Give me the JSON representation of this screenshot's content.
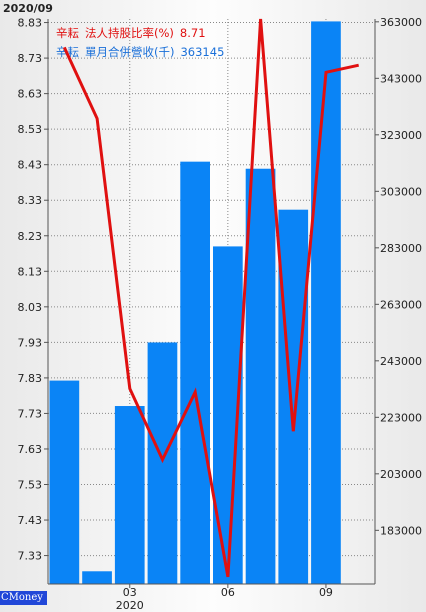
{
  "header": {
    "date": "2020/09"
  },
  "watermark": "CMoney",
  "legend": {
    "line": {
      "stock": "辛耘",
      "label": "法人持股比率(%)",
      "value": "8.71"
    },
    "bar": {
      "stock": "辛耘",
      "label": "單月合併營收(千)",
      "value": "363145"
    }
  },
  "colors": {
    "bar": "#0a84f6",
    "line": "#e01010",
    "grid": "#888888"
  },
  "chart_data": {
    "type": "bar+line",
    "x_tick_labels": [
      {
        "label": "03",
        "index": 2.5
      },
      {
        "label": "06",
        "index": 5.5
      },
      {
        "label": "09",
        "index": 8.5
      }
    ],
    "x_year_label": "2020",
    "left_axis": {
      "ticks": [
        "8.83",
        "8.73",
        "8.63",
        "8.53",
        "8.43",
        "8.33",
        "8.23",
        "8.13",
        "8.03",
        "7.93",
        "7.83",
        "7.73",
        "7.63",
        "7.53",
        "7.43",
        "7.33"
      ],
      "range": [
        7.25,
        8.84
      ]
    },
    "right_axis": {
      "ticks": [
        "363000",
        "343000",
        "323000",
        "303000",
        "283000",
        "263000",
        "243000",
        "223000",
        "203000",
        "183000"
      ],
      "range": [
        164000,
        364000
      ]
    },
    "series": [
      {
        "type": "bar",
        "axis": "right",
        "values": [
          236000,
          168500,
          227000,
          249500,
          313500,
          283500,
          311000,
          296500,
          363145
        ]
      },
      {
        "type": "line",
        "axis": "left",
        "x": [
          0.5,
          1.5,
          2.5,
          3.5,
          4.5,
          5.5,
          6.5,
          7.5,
          8.5,
          9.5
        ],
        "values": [
          8.76,
          8.56,
          7.8,
          7.6,
          7.79,
          7.27,
          8.85,
          7.68,
          8.69,
          8.71
        ]
      }
    ]
  }
}
